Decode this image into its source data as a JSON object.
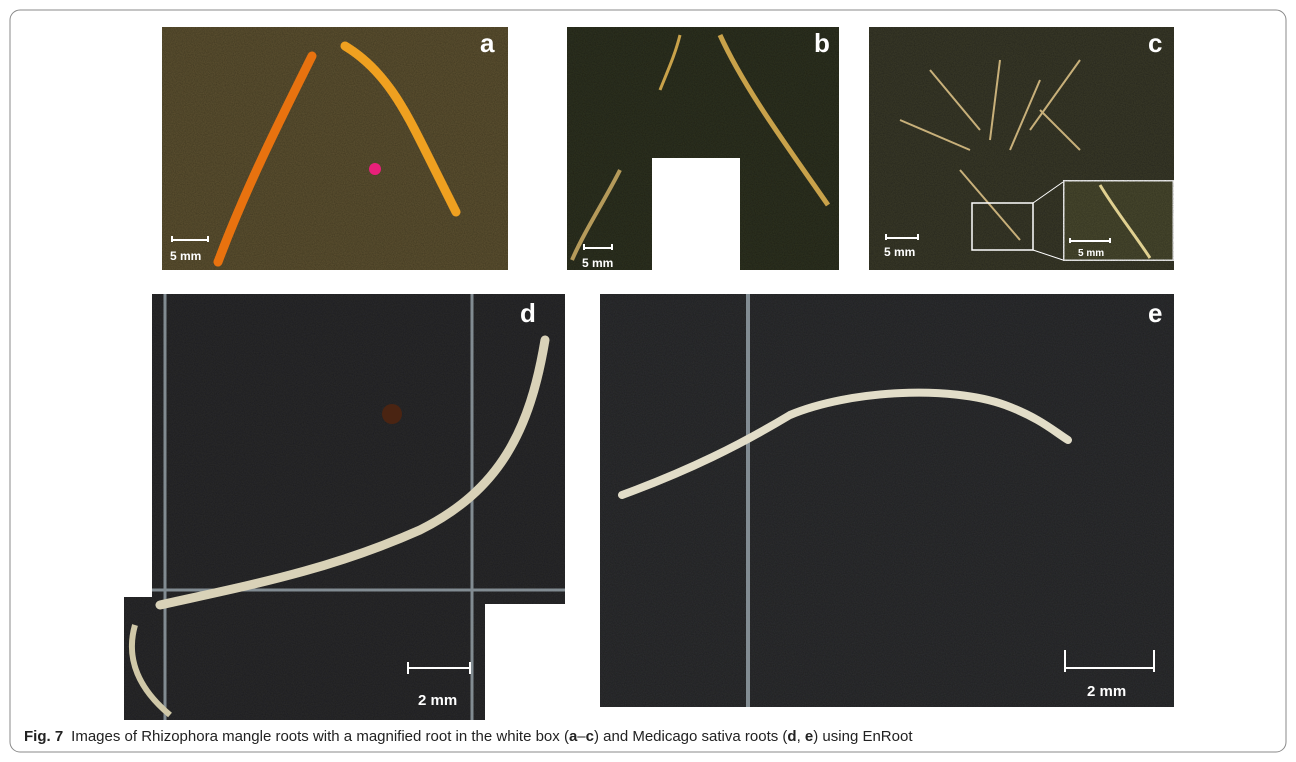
{
  "figure": {
    "panels": [
      {
        "label": "a",
        "scale": "5 mm"
      },
      {
        "label": "b",
        "scale": "5 mm"
      },
      {
        "label": "c",
        "scale": "5 mm",
        "inset_scale": "5 mm"
      },
      {
        "label": "d",
        "scale": "2 mm"
      },
      {
        "label": "e",
        "scale": "2 mm"
      }
    ],
    "caption": {
      "number": "Fig. 7",
      "parts": [
        "Images of Rhizophora mangle roots with a magnified root in the white box (",
        "a",
        "–",
        "c",
        ") and Medicago sativa roots (",
        "d",
        ", ",
        "e",
        ") using EnRoot"
      ]
    }
  }
}
